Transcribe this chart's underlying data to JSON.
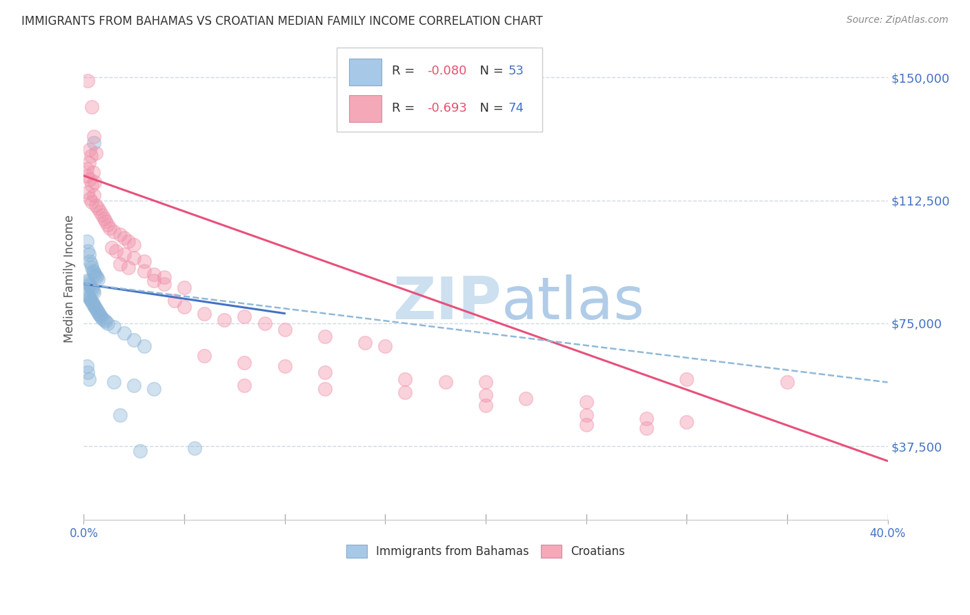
{
  "title": "IMMIGRANTS FROM BAHAMAS VS CROATIAN MEDIAN FAMILY INCOME CORRELATION CHART",
  "source": "Source: ZipAtlas.com",
  "ylabel": "Median Family Income",
  "y_ticks": [
    37500,
    75000,
    112500,
    150000
  ],
  "y_tick_labels": [
    "$37,500",
    "$75,000",
    "$112,500",
    "$150,000"
  ],
  "x_min": 0.0,
  "x_max": 40.0,
  "y_min": 15000,
  "y_max": 162000,
  "legend_label1": "Immigrants from Bahamas",
  "legend_label2": "Croatians",
  "blue_color": "#8ab4d8",
  "pink_color": "#f090a8",
  "blue_line_color": "#4472c4",
  "pink_line_color": "#e8507a",
  "dashed_line_color": "#90b8d8",
  "watermark_color": "#cde0f0",
  "blue_scatter": [
    [
      0.15,
      100000
    ],
    [
      0.2,
      97000
    ],
    [
      0.25,
      96000
    ],
    [
      0.3,
      94000
    ],
    [
      0.35,
      93000
    ],
    [
      0.4,
      92000
    ],
    [
      0.45,
      91000
    ],
    [
      0.5,
      90500
    ],
    [
      0.55,
      90000
    ],
    [
      0.6,
      89500
    ],
    [
      0.65,
      89000
    ],
    [
      0.7,
      88500
    ],
    [
      0.15,
      88000
    ],
    [
      0.2,
      87500
    ],
    [
      0.25,
      87000
    ],
    [
      0.3,
      86500
    ],
    [
      0.35,
      86000
    ],
    [
      0.4,
      85500
    ],
    [
      0.45,
      85000
    ],
    [
      0.5,
      84500
    ],
    [
      0.15,
      84000
    ],
    [
      0.2,
      83500
    ],
    [
      0.25,
      83000
    ],
    [
      0.3,
      82500
    ],
    [
      0.35,
      82000
    ],
    [
      0.4,
      81500
    ],
    [
      0.45,
      81000
    ],
    [
      0.5,
      80500
    ],
    [
      0.55,
      80000
    ],
    [
      0.6,
      79500
    ],
    [
      0.65,
      79000
    ],
    [
      0.7,
      78500
    ],
    [
      0.75,
      78000
    ],
    [
      0.8,
      77500
    ],
    [
      0.85,
      77000
    ],
    [
      0.9,
      76500
    ],
    [
      1.0,
      76000
    ],
    [
      1.1,
      75500
    ],
    [
      1.2,
      75000
    ],
    [
      1.5,
      74000
    ],
    [
      2.0,
      72000
    ],
    [
      2.5,
      70000
    ],
    [
      3.0,
      68000
    ],
    [
      0.15,
      62000
    ],
    [
      0.2,
      60000
    ],
    [
      0.25,
      58000
    ],
    [
      1.5,
      57000
    ],
    [
      2.5,
      56000
    ],
    [
      3.5,
      55000
    ],
    [
      0.5,
      130000
    ],
    [
      1.8,
      47000
    ],
    [
      2.8,
      36000
    ],
    [
      5.5,
      37000
    ]
  ],
  "pink_scatter": [
    [
      0.2,
      149000
    ],
    [
      0.4,
      141000
    ],
    [
      0.5,
      132000
    ],
    [
      0.3,
      128000
    ],
    [
      0.6,
      127000
    ],
    [
      0.35,
      126000
    ],
    [
      0.25,
      124000
    ],
    [
      0.15,
      122000
    ],
    [
      0.45,
      121000
    ],
    [
      0.15,
      120000
    ],
    [
      0.3,
      119000
    ],
    [
      0.55,
      118000
    ],
    [
      0.4,
      117000
    ],
    [
      0.2,
      115000
    ],
    [
      0.5,
      114000
    ],
    [
      0.3,
      113000
    ],
    [
      0.4,
      112000
    ],
    [
      0.6,
      111000
    ],
    [
      0.7,
      110000
    ],
    [
      0.8,
      109000
    ],
    [
      0.9,
      108000
    ],
    [
      1.0,
      107000
    ],
    [
      1.1,
      106000
    ],
    [
      1.2,
      105000
    ],
    [
      1.3,
      104000
    ],
    [
      1.5,
      103000
    ],
    [
      1.8,
      102000
    ],
    [
      2.0,
      101000
    ],
    [
      2.2,
      100000
    ],
    [
      2.5,
      99000
    ],
    [
      1.4,
      98000
    ],
    [
      1.6,
      97000
    ],
    [
      2.0,
      96000
    ],
    [
      2.5,
      95000
    ],
    [
      3.0,
      94000
    ],
    [
      1.8,
      93000
    ],
    [
      2.2,
      92000
    ],
    [
      3.0,
      91000
    ],
    [
      3.5,
      90000
    ],
    [
      4.0,
      89000
    ],
    [
      3.5,
      88000
    ],
    [
      4.0,
      87000
    ],
    [
      5.0,
      86000
    ],
    [
      4.5,
      82000
    ],
    [
      5.0,
      80000
    ],
    [
      6.0,
      78000
    ],
    [
      7.0,
      76000
    ],
    [
      8.0,
      77000
    ],
    [
      9.0,
      75000
    ],
    [
      10.0,
      73000
    ],
    [
      12.0,
      71000
    ],
    [
      14.0,
      69000
    ],
    [
      15.0,
      68000
    ],
    [
      6.0,
      65000
    ],
    [
      8.0,
      63000
    ],
    [
      10.0,
      62000
    ],
    [
      12.0,
      60000
    ],
    [
      16.0,
      58000
    ],
    [
      18.0,
      57000
    ],
    [
      20.0,
      57000
    ],
    [
      8.0,
      56000
    ],
    [
      12.0,
      55000
    ],
    [
      16.0,
      54000
    ],
    [
      20.0,
      53000
    ],
    [
      22.0,
      52000
    ],
    [
      25.0,
      51000
    ],
    [
      20.0,
      50000
    ],
    [
      25.0,
      47000
    ],
    [
      28.0,
      46000
    ],
    [
      30.0,
      58000
    ],
    [
      30.0,
      45000
    ],
    [
      25.0,
      44000
    ],
    [
      28.0,
      43000
    ],
    [
      35.0,
      57000
    ]
  ],
  "blue_line": {
    "x0": 0.0,
    "y0": 87000,
    "x1": 10.0,
    "y1": 78000
  },
  "pink_line": {
    "x0": 0.0,
    "y0": 120000,
    "x1": 40.0,
    "y1": 33000
  },
  "dashed_line": {
    "x0": 0.0,
    "y0": 87000,
    "x1": 40.0,
    "y1": 57000
  },
  "title_fontsize": 12,
  "tick_color": "#4472c4",
  "grid_color": "#d0d8e8",
  "x_tick_vals": [
    0.0,
    5.0,
    10.0,
    15.0,
    20.0,
    25.0,
    30.0,
    35.0,
    40.0
  ]
}
